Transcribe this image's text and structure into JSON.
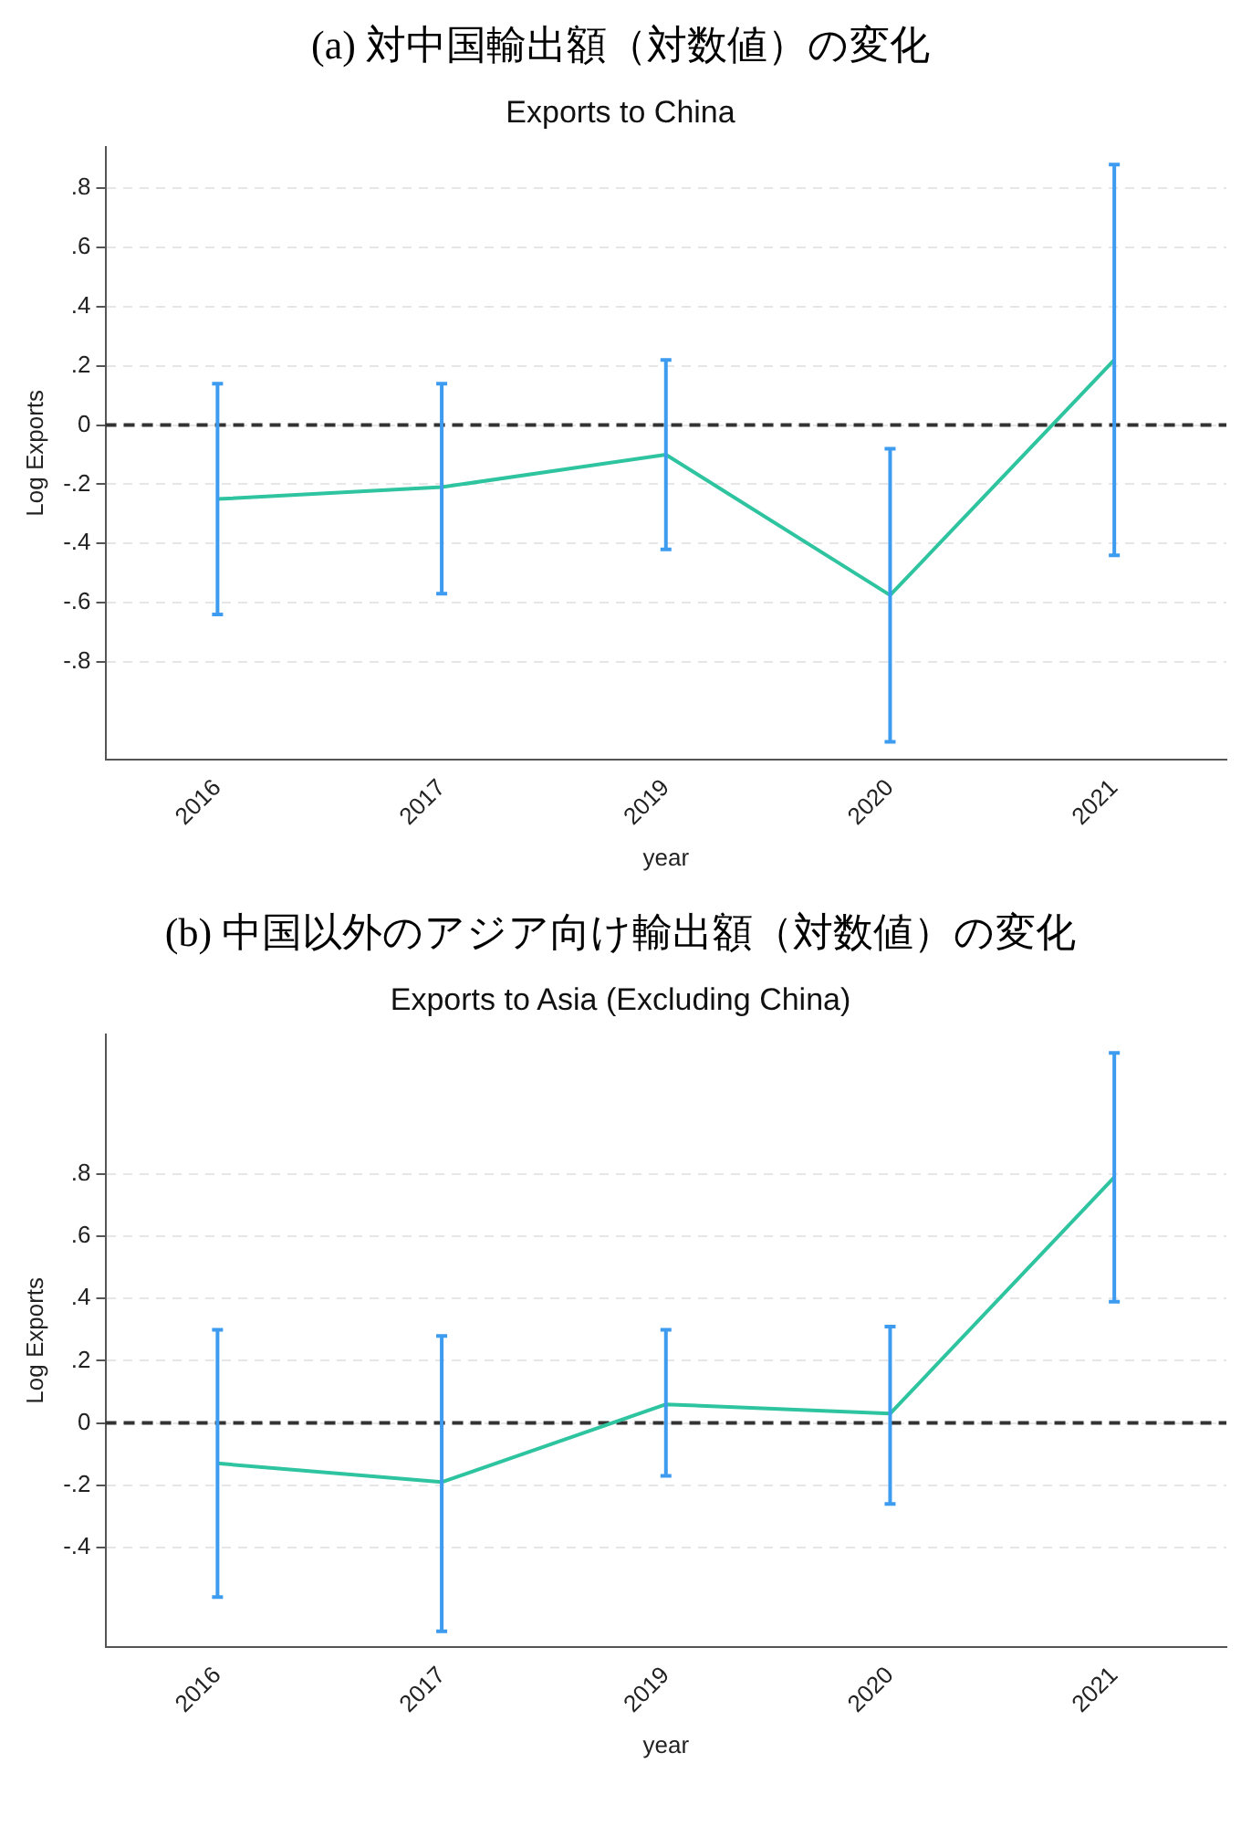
{
  "chart_data": [
    {
      "type": "line",
      "title": "(a)  対中国輸出額（対数値）の変化",
      "subtitle": "Exports to China",
      "xlabel": "year",
      "ylabel": "Log Exports",
      "categories": [
        "2016",
        "2017",
        "2019",
        "2020",
        "2021"
      ],
      "series": [
        {
          "color": "#2ec4a0",
          "values": [
            -0.25,
            -0.21,
            -0.1,
            -0.575,
            0.22
          ],
          "errors": [
            [
              -0.64,
              0.14
            ],
            [
              -0.57,
              0.14
            ],
            [
              -0.42,
              0.22
            ],
            [
              -1.07,
              -0.08
            ],
            [
              -0.44,
              0.88
            ]
          ]
        }
      ],
      "ylim": [
        -1.13,
        0.94
      ],
      "yticks": [
        {
          "value": -0.8,
          "label": "-.8"
        },
        {
          "value": -0.6,
          "label": "-.6"
        },
        {
          "value": -0.4,
          "label": "-.4"
        },
        {
          "value": -0.2,
          "label": "-.2"
        },
        0,
        {
          "value": 0.2,
          "label": ".2"
        },
        {
          "value": 0.4,
          "label": ".4"
        },
        {
          "value": 0.6,
          "label": ".6"
        },
        {
          "value": 0.8,
          "label": ".8"
        }
      ],
      "ref_lines": [
        {
          "axis": "y",
          "value": 0,
          "color": "#333333",
          "line_style": "dashed"
        }
      ],
      "grid": "y",
      "legend": false,
      "marker": "none",
      "line_style": "solid"
    },
    {
      "type": "line",
      "title": "(b)  中国以外のアジア向け輸出額（対数値）の変化",
      "subtitle": "Exports to Asia (Excluding China)",
      "xlabel": "year",
      "ylabel": "Log Exports",
      "categories": [
        "2016",
        "2017",
        "2019",
        "2020",
        "2021"
      ],
      "series": [
        {
          "color": "#2ec4a0",
          "values": [
            -0.13,
            -0.19,
            0.06,
            0.03,
            0.79
          ],
          "errors": [
            [
              -0.56,
              0.3
            ],
            [
              -0.67,
              0.28
            ],
            [
              -0.17,
              0.3
            ],
            [
              -0.26,
              0.31
            ],
            [
              0.39,
              1.19
            ]
          ]
        }
      ],
      "ylim": [
        -0.72,
        1.25
      ],
      "yticks": [
        {
          "value": -0.4,
          "label": "-.4"
        },
        {
          "value": -0.2,
          "label": "-.2"
        },
        0,
        {
          "value": 0.2,
          "label": ".2"
        },
        {
          "value": 0.4,
          "label": ".4"
        },
        {
          "value": 0.6,
          "label": ".6"
        },
        {
          "value": 0.8,
          "label": ".8"
        }
      ],
      "ref_lines": [
        {
          "axis": "y",
          "value": 0,
          "color": "#333333",
          "line_style": "dashed"
        }
      ],
      "grid": "y",
      "legend": false,
      "marker": "none",
      "line_style": "solid"
    }
  ]
}
